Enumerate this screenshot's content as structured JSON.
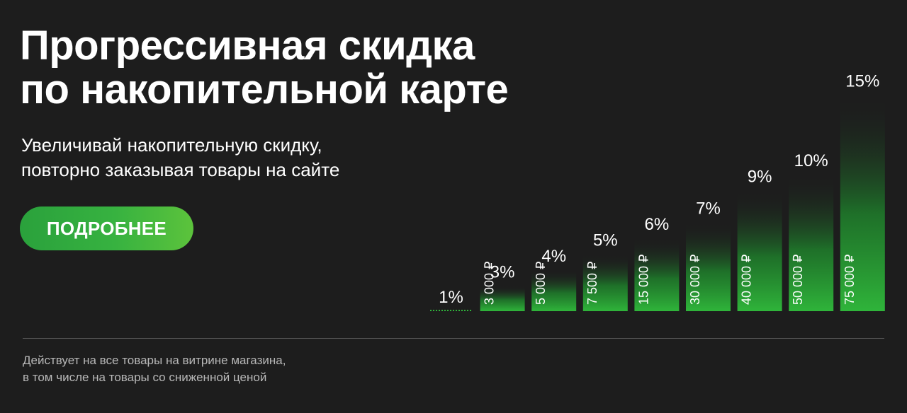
{
  "banner": {
    "title_lines": [
      "Прогрессивная скидка",
      "по накопительной карте"
    ],
    "subtitle_lines": [
      "Увеличивай накопительную скидку,",
      "повторно заказывая товары на сайте"
    ],
    "cta_label": "ПОДРОБНЕЕ",
    "note_lines": [
      "Действует на все товары на витрине магазина,",
      "в том числе на товары со сниженной ценой"
    ]
  },
  "colors": {
    "background": "#1d1d1d",
    "accent": "#2fb43a",
    "text": "#ffffff",
    "note_text": "#b8b8b8"
  },
  "chart_data": {
    "type": "bar",
    "categories": [
      "",
      "3 000 ₽",
      "5 000 ₽",
      "7 500 ₽",
      "15 000 ₽",
      "30 000 ₽",
      "40 000 ₽",
      "50 000 ₽",
      "75 000 ₽"
    ],
    "values": [
      1,
      3,
      4,
      5,
      6,
      7,
      9,
      10,
      15
    ],
    "value_labels": [
      "1%",
      "3%",
      "4%",
      "5%",
      "6%",
      "7%",
      "9%",
      "10%",
      "15%"
    ],
    "title": "",
    "xlabel": "",
    "ylabel": "",
    "ylim": [
      0,
      15
    ]
  }
}
